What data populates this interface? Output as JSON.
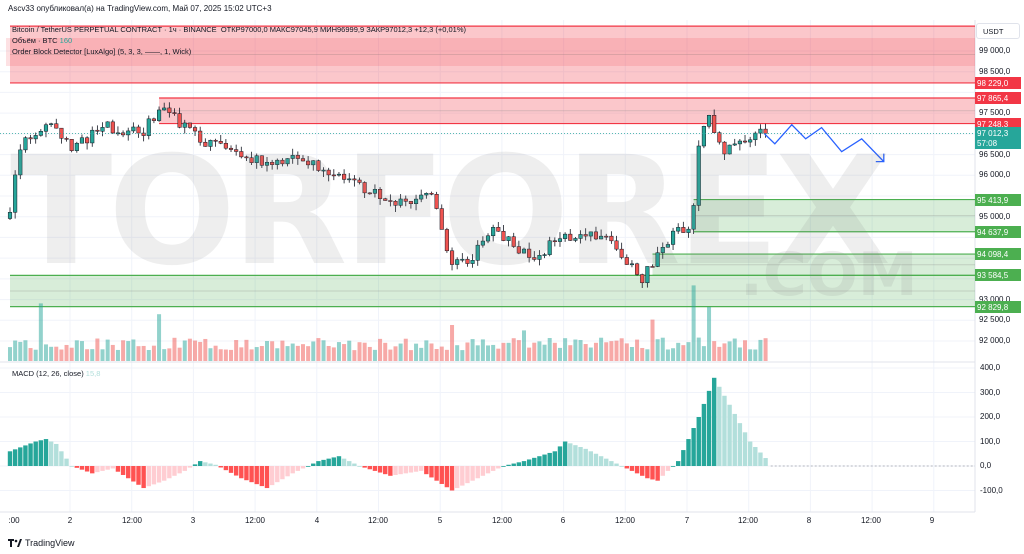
{
  "published": "Ascv33 опубликовал(а) на TradingView.com, Май 07, 2025 15:02 UTC+3",
  "legend": {
    "symbol": "Bitcoin / TetherUS PERPETUAL CONTRACT · 1ч · BINANCE",
    "ohlc": "ОТКР97000,0  МАКС97045,9  МИН96999,9  ЗАКР97012,3  +12,3 (+0,01%)",
    "volume_label": "Объём · BTC",
    "volume_value": "160",
    "indicator": "Order Block Detector [LuxAlgo] (5, 3, 3, ——, 1, Wick)",
    "macd_label": "MACD (12, 26, close)",
    "macd_value": "15,8"
  },
  "currency": "USDT",
  "price_axis": [
    "99 000,0",
    "98 500,0",
    "97 500,0",
    "96 500,0",
    "96 000,0",
    "95 000,0",
    "93 000,0",
    "92 500,0",
    "92 000,0"
  ],
  "price_tags": [
    {
      "text": "98 229,0",
      "price": 98229,
      "color": "#f23645"
    },
    {
      "text": "97 865,4",
      "price": 97865.4,
      "color": "#f23645"
    },
    {
      "text": "97 248,3",
      "price": 97248.3,
      "color": "#f23645"
    },
    {
      "text": "95 413,9",
      "price": 95413.9,
      "color": "#4caf50"
    },
    {
      "text": "94 637,9",
      "price": 94637.9,
      "color": "#4caf50"
    },
    {
      "text": "94 098,4",
      "price": 94098.4,
      "color": "#4caf50"
    },
    {
      "text": "93 584,5",
      "price": 93584.5,
      "color": "#4caf50"
    },
    {
      "text": "92 829,8",
      "price": 92829.8,
      "color": "#4caf50"
    }
  ],
  "current_price": {
    "text": "97 012,3",
    "countdown": "57:08",
    "price": 97012.3,
    "color": "#26a69a"
  },
  "macd_axis": [
    "400,0",
    "300,0",
    "200,0",
    "100,0",
    "0,0",
    "-100,0"
  ],
  "time_axis": [
    ":00",
    "2",
    "12:00",
    "3",
    "12:00",
    "4",
    "12:00",
    "5",
    "12:00",
    "6",
    "12:00",
    "7",
    "12:00",
    "8",
    "12:00",
    "9"
  ],
  "footer": "TradingView",
  "watermark": "TORFOREX.COM",
  "colors": {
    "up": "#26a69a",
    "down": "#ef5350",
    "bear_zone": "#f23645",
    "bull_zone": "#4caf50",
    "forecast": "#2962ff"
  },
  "chart_data": {
    "type": "candlestick",
    "interval": "1h",
    "close_keypoints": [
      [
        0,
        95200
      ],
      [
        2.3,
        96800
      ],
      [
        7.2,
        97300
      ],
      [
        12,
        96600
      ],
      [
        17.9,
        97200
      ],
      [
        25.7,
        97000
      ],
      [
        29.6,
        97700
      ],
      [
        33.5,
        97200
      ],
      [
        37.4,
        96800
      ],
      [
        45,
        96500
      ],
      [
        51,
        96200
      ],
      [
        55,
        96500
      ],
      [
        64.6,
        96000
      ],
      [
        74.3,
        95300
      ],
      [
        82,
        95500
      ],
      [
        86,
        93900
      ],
      [
        89.9,
        94000
      ],
      [
        93.8,
        94700
      ],
      [
        101.6,
        94000
      ],
      [
        107.4,
        94500
      ],
      [
        111.3,
        94600
      ],
      [
        117,
        94400
      ],
      [
        123,
        93500
      ],
      [
        128.8,
        94600
      ],
      [
        132.7,
        94800
      ],
      [
        133.7,
        96500
      ],
      [
        135.6,
        97600
      ],
      [
        138.5,
        96500
      ],
      [
        142.4,
        96800
      ],
      [
        146.3,
        97012.3
      ]
    ],
    "volume_spikes": [
      [
        6,
        3.2
      ],
      [
        29,
        2.6
      ],
      [
        86,
        2.0
      ],
      [
        100,
        1.7
      ],
      [
        125,
        2.3
      ],
      [
        133,
        4.2
      ],
      [
        136,
        3.0
      ]
    ],
    "macd_hist_keypoints": [
      [
        0,
        60
      ],
      [
        5,
        100
      ],
      [
        7,
        110
      ],
      [
        9,
        90
      ],
      [
        12,
        0
      ],
      [
        16,
        -30
      ],
      [
        20,
        -10
      ],
      [
        26,
        -90
      ],
      [
        30,
        -60
      ],
      [
        34,
        -20
      ],
      [
        37,
        20
      ],
      [
        40,
        5
      ],
      [
        45,
        -50
      ],
      [
        50,
        -90
      ],
      [
        55,
        -30
      ],
      [
        60,
        20
      ],
      [
        64,
        40
      ],
      [
        68,
        0
      ],
      [
        74,
        -40
      ],
      [
        80,
        -20
      ],
      [
        86,
        -100
      ],
      [
        90,
        -60
      ],
      [
        96,
        0
      ],
      [
        100,
        20
      ],
      [
        106,
        60
      ],
      [
        108,
        100
      ],
      [
        112,
        70
      ],
      [
        118,
        10
      ],
      [
        124,
        -50
      ],
      [
        126,
        -60
      ],
      [
        130,
        20
      ],
      [
        134,
        200
      ],
      [
        137,
        360
      ],
      [
        140,
        250
      ],
      [
        144,
        100
      ],
      [
        148,
        10
      ]
    ],
    "order_blocks": [
      {
        "type": "bearish",
        "top": 99600,
        "bottom": 98229,
        "from_hour": 0
      },
      {
        "type": "bearish",
        "top": 97865.4,
        "bottom": 97248.3,
        "from_hour": 29
      },
      {
        "type": "bullish",
        "top": 95413.9,
        "bottom": 94637.9,
        "from_hour": 133
      },
      {
        "type": "bullish",
        "top": 94098.4,
        "bottom": 93584.5,
        "from_hour": 125
      },
      {
        "type": "bullish",
        "top": 93584.5,
        "bottom": 92829.8,
        "from_hour": 0
      }
    ],
    "forecast_path": [
      [
        146.8,
        97000
      ],
      [
        148.8,
        96760
      ],
      [
        152.1,
        97220
      ],
      [
        154.8,
        96880
      ],
      [
        157.9,
        97150
      ],
      [
        161.8,
        96570
      ],
      [
        165.7,
        96880
      ],
      [
        170,
        96330
      ]
    ]
  }
}
